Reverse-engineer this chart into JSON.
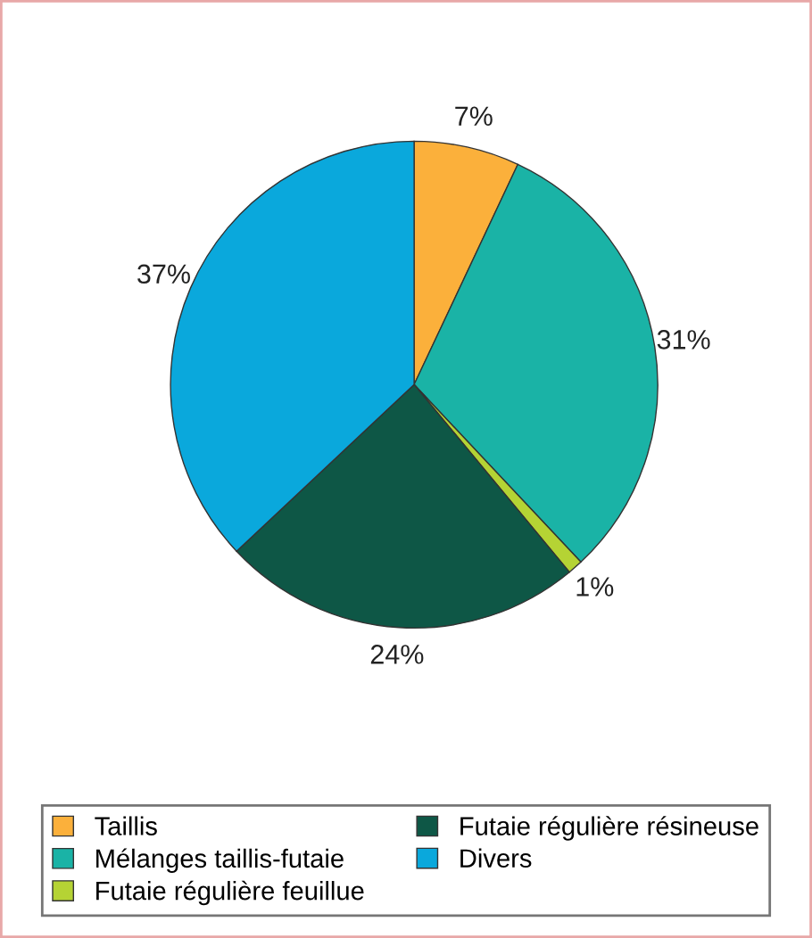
{
  "chart_data": {
    "type": "pie",
    "categories": [
      "Taillis",
      "Mélanges taillis-futaie",
      "Futaie régulière feuillue",
      "Futaie régulière résineuse",
      "Divers"
    ],
    "values": [
      7,
      31,
      1,
      24,
      37
    ],
    "value_labels": [
      "7%",
      "31%",
      "1%",
      "24%",
      "37%"
    ],
    "colors": [
      "#fbb03b",
      "#1ab3a6",
      "#b5d334",
      "#0e5746",
      "#0aa8dc"
    ],
    "legend": "bottom"
  }
}
